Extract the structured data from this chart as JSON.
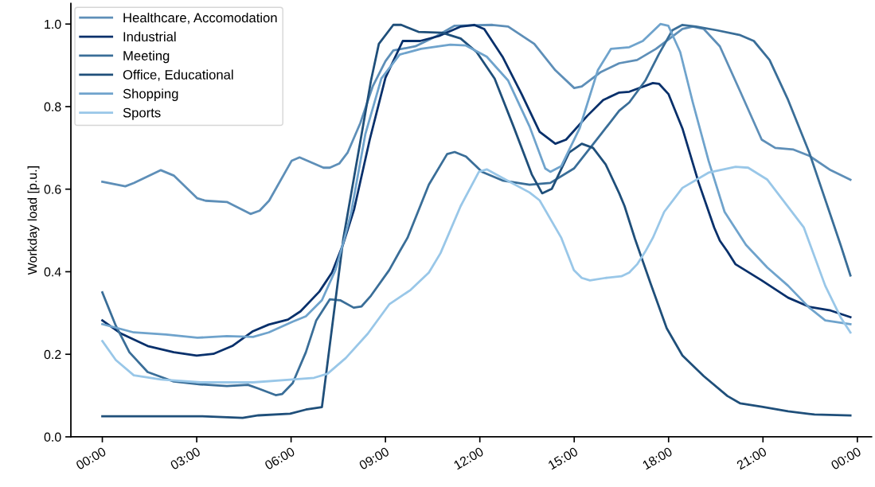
{
  "chart_data": {
    "type": "line",
    "ylabel": "Workday load [p.u.]",
    "xlim": [
      -1.0,
      24.45
    ],
    "ylim": [
      0,
      1.05
    ],
    "xticks": [
      {
        "value": 0,
        "label": "00:00"
      },
      {
        "value": 3,
        "label": "03:00"
      },
      {
        "value": 6,
        "label": "06:00"
      },
      {
        "value": 9,
        "label": "09:00"
      },
      {
        "value": 12,
        "label": "12:00"
      },
      {
        "value": 15,
        "label": "15:00"
      },
      {
        "value": 18,
        "label": "18:00"
      },
      {
        "value": 21,
        "label": "21:00"
      },
      {
        "value": 24,
        "label": "00:00"
      }
    ],
    "yticks": [
      {
        "value": 0,
        "label": "0.0"
      },
      {
        "value": 0.2,
        "label": "0.2"
      },
      {
        "value": 0.4,
        "label": "0.4"
      },
      {
        "value": 0.6,
        "label": "0.6"
      },
      {
        "value": 0.8,
        "label": "0.8"
      },
      {
        "value": 1.0,
        "label": "1.0"
      }
    ],
    "grid": false,
    "legend": "top left",
    "line_style": "solid",
    "marker": "none",
    "series": [
      {
        "name": "Healthcare, Accomodation",
        "color": "#5e8fb8",
        "x": [
          0,
          0.73,
          1.0,
          1.86,
          2.27,
          3.02,
          3.28,
          3.96,
          4.71,
          5.0,
          5.3,
          6.02,
          6.27,
          7.03,
          7.23,
          7.53,
          7.8,
          8.2,
          8.6,
          9.0,
          9.25,
          9.95,
          10.63,
          11.2,
          12.4,
          12.9,
          13.73,
          14.4,
          15.0,
          15.24,
          15.85,
          16.43,
          17.0,
          17.6,
          18.44,
          18.77,
          19.12,
          19.63,
          20.28,
          20.96,
          21.39,
          21.97,
          22.47,
          23.15,
          23.78
        ],
        "values": [
          0.618,
          0.607,
          0.615,
          0.646,
          0.633,
          0.578,
          0.572,
          0.569,
          0.54,
          0.548,
          0.572,
          0.669,
          0.677,
          0.652,
          0.652,
          0.662,
          0.689,
          0.76,
          0.85,
          0.91,
          0.936,
          0.946,
          0.971,
          0.996,
          0.998,
          0.994,
          0.952,
          0.888,
          0.845,
          0.849,
          0.884,
          0.905,
          0.913,
          0.94,
          0.988,
          0.994,
          0.988,
          0.946,
          0.836,
          0.72,
          0.7,
          0.696,
          0.681,
          0.646,
          0.623
        ]
      },
      {
        "name": "Industrial",
        "color": "#08306b",
        "x": [
          0,
          0.6,
          1.44,
          2.27,
          3.0,
          3.53,
          4.13,
          4.79,
          5.29,
          5.9,
          6.3,
          6.9,
          7.3,
          7.66,
          8.0,
          8.5,
          9.0,
          9.55,
          10.1,
          10.7,
          11.4,
          11.82,
          12.14,
          12.72,
          13.33,
          13.9,
          14.4,
          14.74,
          15.42,
          15.92,
          16.43,
          16.75,
          17.5,
          17.7,
          18.0,
          18.44,
          18.95,
          19.45,
          19.63,
          19.87,
          20.13,
          20.96,
          21.8,
          22.47,
          23.15,
          23.78
        ],
        "values": [
          0.282,
          0.25,
          0.22,
          0.205,
          0.197,
          0.201,
          0.22,
          0.256,
          0.272,
          0.284,
          0.304,
          0.352,
          0.398,
          0.468,
          0.55,
          0.72,
          0.87,
          0.959,
          0.959,
          0.971,
          0.994,
          0.998,
          0.988,
          0.921,
          0.83,
          0.739,
          0.71,
          0.72,
          0.778,
          0.816,
          0.834,
          0.836,
          0.857,
          0.855,
          0.83,
          0.747,
          0.617,
          0.507,
          0.475,
          0.449,
          0.418,
          0.379,
          0.337,
          0.315,
          0.306,
          0.29
        ]
      },
      {
        "name": "Meeting",
        "color": "#3a6e98",
        "x": [
          0,
          0.43,
          0.86,
          1.44,
          2.27,
          3.12,
          3.96,
          4.63,
          4.96,
          5.51,
          5.72,
          6.05,
          6.47,
          6.8,
          7.23,
          7.56,
          7.99,
          8.24,
          8.54,
          9.12,
          9.45,
          9.7,
          10.38,
          10.96,
          11.2,
          11.56,
          12.07,
          12.72,
          13.58,
          14.24,
          14.99,
          15.85,
          16.43,
          16.75,
          17.26,
          17.69,
          18.12,
          18.44,
          18.87,
          19.53,
          20.28,
          20.71,
          21.21,
          21.8,
          22.47,
          23.05,
          23.48,
          23.78
        ],
        "values": [
          0.35,
          0.269,
          0.205,
          0.157,
          0.134,
          0.127,
          0.123,
          0.126,
          0.117,
          0.101,
          0.104,
          0.13,
          0.205,
          0.282,
          0.333,
          0.331,
          0.313,
          0.316,
          0.342,
          0.404,
          0.449,
          0.482,
          0.611,
          0.685,
          0.69,
          0.679,
          0.642,
          0.621,
          0.611,
          0.615,
          0.65,
          0.733,
          0.79,
          0.81,
          0.863,
          0.927,
          0.985,
          0.998,
          0.994,
          0.985,
          0.973,
          0.959,
          0.913,
          0.816,
          0.689,
          0.559,
          0.462,
          0.391
        ]
      },
      {
        "name": "Office, Educational",
        "color": "#1f4f7a",
        "x": [
          0,
          3.12,
          4.46,
          4.96,
          5.97,
          6.47,
          6.98,
          7.66,
          8.54,
          8.79,
          9.25,
          9.5,
          10.05,
          10.8,
          11.39,
          11.9,
          12.47,
          13.07,
          13.65,
          13.98,
          14.29,
          14.84,
          15.24,
          15.6,
          16.0,
          16.43,
          16.6,
          16.93,
          17.43,
          17.94,
          18.44,
          19.12,
          19.87,
          20.28,
          20.96,
          21.8,
          22.64,
          23.78
        ],
        "values": [
          0.05,
          0.05,
          0.046,
          0.052,
          0.056,
          0.066,
          0.072,
          0.48,
          0.863,
          0.952,
          0.998,
          0.998,
          0.981,
          0.979,
          0.965,
          0.932,
          0.868,
          0.752,
          0.636,
          0.59,
          0.601,
          0.689,
          0.71,
          0.7,
          0.66,
          0.59,
          0.559,
          0.48,
          0.371,
          0.263,
          0.197,
          0.147,
          0.099,
          0.081,
          0.073,
          0.062,
          0.054,
          0.052
        ]
      },
      {
        "name": "Shopping",
        "color": "#6fa3cc",
        "x": [
          0,
          1.0,
          2.02,
          3.02,
          3.96,
          4.79,
          5.29,
          6.05,
          6.47,
          6.98,
          7.41,
          7.68,
          7.9,
          8.36,
          8.87,
          9.45,
          10.13,
          11.06,
          11.56,
          12.22,
          12.9,
          13.58,
          14.08,
          14.24,
          14.59,
          15.17,
          15.75,
          16.17,
          16.75,
          17.18,
          17.74,
          17.99,
          18.37,
          18.77,
          19.27,
          19.78,
          20.46,
          21.14,
          21.8,
          22.47,
          22.98,
          23.78
        ],
        "values": [
          0.273,
          0.253,
          0.248,
          0.24,
          0.244,
          0.242,
          0.253,
          0.279,
          0.292,
          0.331,
          0.404,
          0.476,
          0.54,
          0.733,
          0.868,
          0.926,
          0.94,
          0.95,
          0.948,
          0.921,
          0.863,
          0.752,
          0.65,
          0.642,
          0.656,
          0.747,
          0.888,
          0.94,
          0.944,
          0.959,
          1.0,
          0.996,
          0.932,
          0.81,
          0.669,
          0.545,
          0.465,
          0.41,
          0.366,
          0.313,
          0.282,
          0.273
        ]
      },
      {
        "name": "Sports",
        "color": "#99c7e8",
        "x": [
          0,
          0.43,
          1.0,
          1.86,
          3.12,
          4.79,
          6.05,
          6.73,
          7.16,
          7.74,
          8.44,
          9.12,
          9.8,
          10.38,
          10.75,
          11.39,
          11.97,
          12.22,
          12.82,
          13.58,
          13.9,
          14.59,
          14.99,
          15.24,
          15.5,
          16.0,
          16.5,
          16.75,
          17.0,
          17.26,
          17.5,
          17.86,
          18.44,
          19.27,
          20.13,
          20.53,
          21.14,
          21.72,
          22.3,
          22.98,
          23.48,
          23.78
        ],
        "values": [
          0.232,
          0.186,
          0.149,
          0.139,
          0.132,
          0.132,
          0.139,
          0.143,
          0.153,
          0.191,
          0.25,
          0.321,
          0.356,
          0.398,
          0.445,
          0.559,
          0.642,
          0.648,
          0.623,
          0.592,
          0.573,
          0.482,
          0.404,
          0.385,
          0.379,
          0.385,
          0.389,
          0.398,
          0.418,
          0.449,
          0.482,
          0.545,
          0.603,
          0.64,
          0.654,
          0.652,
          0.623,
          0.565,
          0.507,
          0.366,
          0.288,
          0.253
        ]
      }
    ]
  }
}
